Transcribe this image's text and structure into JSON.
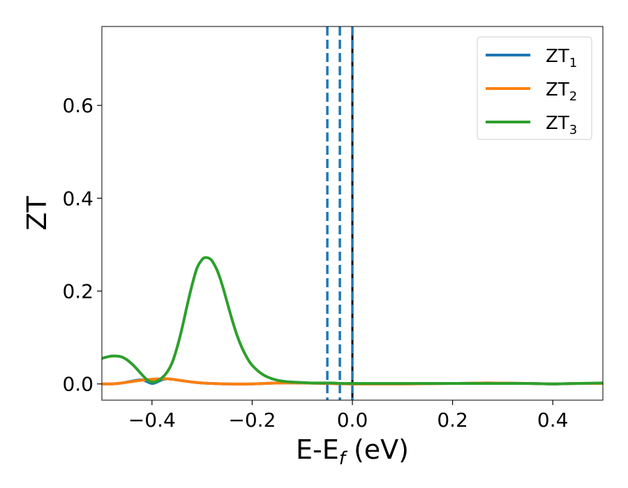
{
  "chart_data": {
    "type": "line",
    "xlabel": "E-E_f (eV)",
    "ylabel": "ZT",
    "xlim": [
      -0.5,
      0.5
    ],
    "ylim": [
      -0.035,
      0.77
    ],
    "xticks": [
      -0.4,
      -0.2,
      0.0,
      0.2,
      0.4
    ],
    "xtick_labels": [
      "−0.4",
      "−0.2",
      "0.0",
      "0.2",
      "0.4"
    ],
    "yticks": [
      0.0,
      0.2,
      0.4,
      0.6
    ],
    "ytick_labels": [
      "0.0",
      "0.2",
      "0.4",
      "0.6"
    ],
    "grid": false,
    "legend_position": "top-right",
    "series": [
      {
        "name": "ZT_1",
        "label_base": "ZT",
        "label_sub": "1",
        "color": "#1f77b4",
        "x": [
          -0.5,
          -0.48,
          -0.46,
          -0.44,
          -0.42,
          -0.41,
          -0.4,
          -0.39,
          -0.38,
          -0.37,
          -0.36,
          -0.34,
          -0.32,
          -0.3,
          -0.28,
          -0.25,
          -0.2,
          -0.15,
          -0.1,
          -0.05,
          0.0,
          0.1,
          0.2,
          0.27,
          0.35,
          0.4,
          0.45,
          0.5
        ],
        "y": [
          0.0,
          0.0,
          0.002,
          0.006,
          0.009,
          0.005,
          0.001,
          0.004,
          0.009,
          0.011,
          0.01,
          0.007,
          0.004,
          0.002,
          0.001,
          0.0,
          0.0,
          0.002,
          0.002,
          0.001,
          0.0,
          0.0,
          0.001,
          0.002,
          0.001,
          0.0,
          0.001,
          0.001
        ]
      },
      {
        "name": "ZT_2",
        "label_base": "ZT",
        "label_sub": "2",
        "color": "#ff7f0e",
        "x": [
          -0.5,
          -0.48,
          -0.46,
          -0.44,
          -0.42,
          -0.4,
          -0.38,
          -0.37,
          -0.36,
          -0.34,
          -0.32,
          -0.3,
          -0.28,
          -0.25,
          -0.2,
          -0.15,
          -0.1,
          -0.05,
          0.0,
          0.1,
          0.2,
          0.27,
          0.35,
          0.4,
          0.45,
          0.5
        ],
        "y": [
          0.0,
          0.0,
          0.002,
          0.005,
          0.008,
          0.01,
          0.011,
          0.011,
          0.01,
          0.007,
          0.004,
          0.002,
          0.001,
          0.0,
          0.0,
          0.002,
          0.002,
          0.001,
          0.0,
          0.0,
          0.001,
          0.002,
          0.001,
          0.0,
          0.001,
          0.001
        ]
      },
      {
        "name": "ZT_3",
        "label_base": "ZT",
        "label_sub": "3",
        "color": "#2ca02c",
        "x": [
          -0.5,
          -0.49,
          -0.48,
          -0.47,
          -0.46,
          -0.45,
          -0.44,
          -0.43,
          -0.42,
          -0.41,
          -0.4,
          -0.39,
          -0.38,
          -0.37,
          -0.36,
          -0.35,
          -0.34,
          -0.33,
          -0.32,
          -0.31,
          -0.3,
          -0.295,
          -0.29,
          -0.285,
          -0.28,
          -0.27,
          -0.26,
          -0.25,
          -0.24,
          -0.23,
          -0.22,
          -0.21,
          -0.2,
          -0.18,
          -0.16,
          -0.14,
          -0.12,
          -0.1,
          -0.08,
          -0.06,
          -0.04,
          -0.02,
          0.0,
          0.05,
          0.1,
          0.15,
          0.2,
          0.25,
          0.3,
          0.35,
          0.4,
          0.45,
          0.5
        ],
        "y": [
          0.055,
          0.058,
          0.06,
          0.06,
          0.058,
          0.052,
          0.043,
          0.032,
          0.02,
          0.009,
          0.004,
          0.006,
          0.013,
          0.025,
          0.045,
          0.078,
          0.12,
          0.168,
          0.213,
          0.25,
          0.268,
          0.272,
          0.272,
          0.27,
          0.265,
          0.245,
          0.214,
          0.176,
          0.138,
          0.104,
          0.077,
          0.056,
          0.04,
          0.021,
          0.011,
          0.006,
          0.004,
          0.003,
          0.002,
          0.002,
          0.002,
          0.001,
          0.001,
          0.001,
          0.001,
          0.001,
          0.001,
          0.001,
          0.001,
          0.001,
          0.0,
          0.001,
          0.002
        ]
      }
    ],
    "vertical_lines": [
      {
        "x": -0.05,
        "style": "dashed",
        "color": "#1f77b4"
      },
      {
        "x": -0.025,
        "style": "dashed",
        "color": "#1f77b4"
      },
      {
        "x": 0.0,
        "style": "solid",
        "color": "#000000"
      },
      {
        "x": 0.0,
        "style": "dashed",
        "color": "#1f77b4"
      }
    ]
  }
}
